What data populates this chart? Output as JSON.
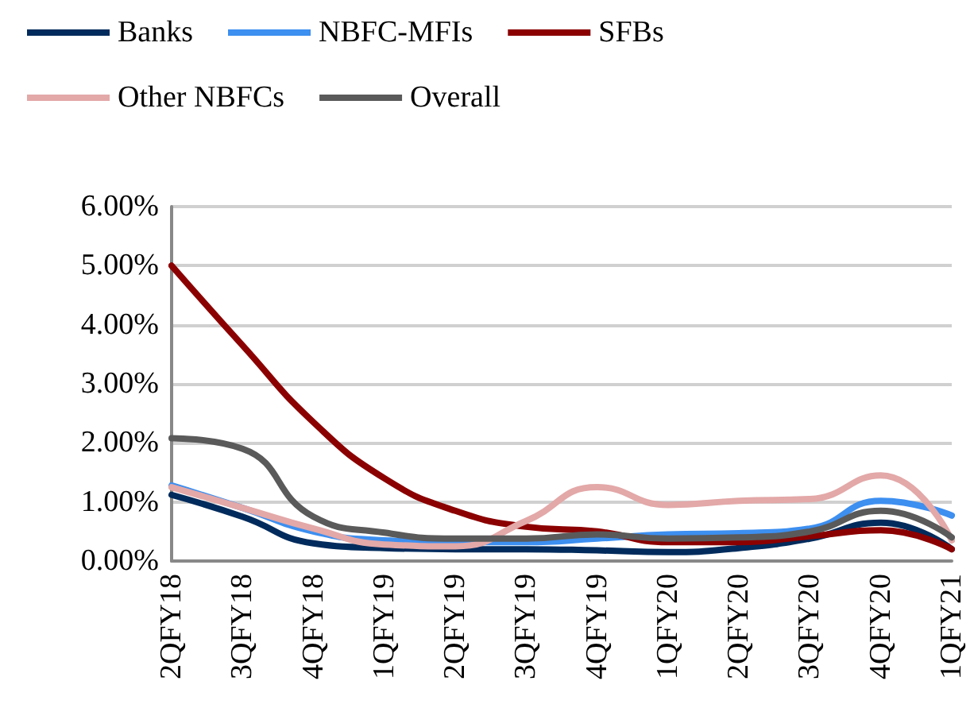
{
  "chart_data": {
    "type": "line",
    "categories": [
      "2QFY18",
      "3QFY18",
      "4QFY18",
      "1QFY19",
      "2QFY19",
      "3QFY19",
      "4QFY19",
      "1QFY20",
      "2QFY20",
      "3QFY20",
      "4QFY20",
      "1QFY21"
    ],
    "series": [
      {
        "name": "Banks",
        "color": "#002b5c",
        "values": [
          1.12,
          0.75,
          0.3,
          0.22,
          0.2,
          0.2,
          0.18,
          0.15,
          0.22,
          0.38,
          0.65,
          0.2
        ]
      },
      {
        "name": "NBFC-MFIs",
        "color": "#3d8ff0",
        "values": [
          1.28,
          0.9,
          0.5,
          0.35,
          0.32,
          0.32,
          0.38,
          0.45,
          0.47,
          0.55,
          1.02,
          0.77
        ]
      },
      {
        "name": "SFBs",
        "color": "#8b0000",
        "values": [
          5.0,
          3.65,
          2.35,
          1.4,
          0.85,
          0.58,
          0.5,
          0.32,
          0.32,
          0.42,
          0.52,
          0.2
        ]
      },
      {
        "name": "Other NBFCs",
        "color": "#e3a8a8",
        "values": [
          1.25,
          0.9,
          0.55,
          0.28,
          0.25,
          0.68,
          1.25,
          0.95,
          1.02,
          1.05,
          1.45,
          0.35
        ]
      },
      {
        "name": "Overall",
        "color": "#5a5a5a",
        "values": [
          2.08,
          1.9,
          0.75,
          0.48,
          0.38,
          0.38,
          0.45,
          0.38,
          0.4,
          0.5,
          0.85,
          0.4
        ]
      }
    ],
    "ylim": [
      0,
      6
    ],
    "yticks": [
      {
        "value": 0,
        "label": "0.00%"
      },
      {
        "value": 1,
        "label": "1.00%"
      },
      {
        "value": 2,
        "label": "2.00%"
      },
      {
        "value": 3,
        "label": "3.00%"
      },
      {
        "value": 4,
        "label": "4.00%"
      },
      {
        "value": 5,
        "label": "5.00%"
      },
      {
        "value": 6,
        "label": "6.00%"
      }
    ],
    "grid": "y",
    "legend": "top left",
    "marker": "none",
    "line_style": "solid"
  }
}
